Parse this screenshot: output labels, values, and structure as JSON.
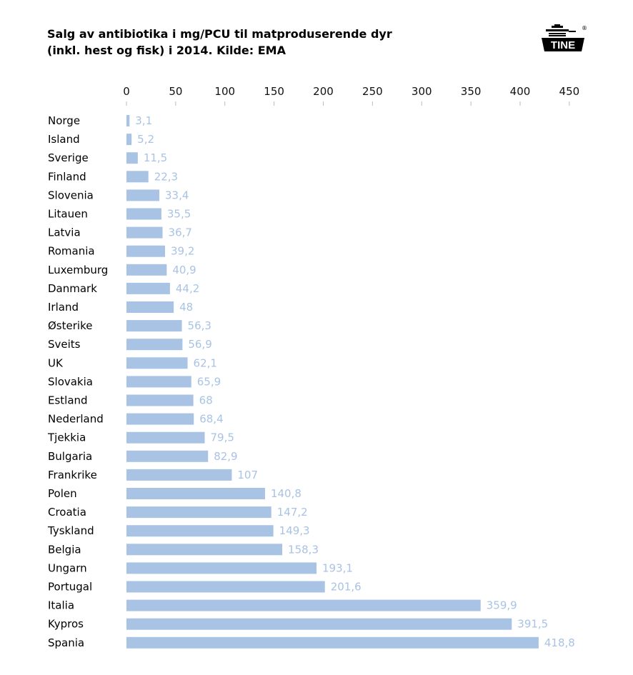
{
  "chart_data": {
    "type": "bar",
    "orientation": "horizontal",
    "title": "Salg av antibiotika i mg/PCU til matproduserende dyr\n(inkl. hest og fisk) i 2014. Kilde: EMA",
    "xlabel": "",
    "ylabel": "",
    "xlim": [
      0,
      450
    ],
    "ticks": [
      0,
      50,
      100,
      150,
      200,
      250,
      300,
      350,
      400,
      450
    ],
    "tick_labels": [
      "0",
      "50",
      "100",
      "150",
      "200",
      "250",
      "300",
      "350",
      "400",
      "450"
    ],
    "grid": false,
    "bar_color": "#a9c3e4",
    "categories": [
      "Norge",
      "Island",
      "Sverige",
      "Finland",
      "Slovenia",
      "Litauen",
      "Latvia",
      "Romania",
      "Luxemburg",
      "Danmark",
      "Irland",
      "Østerike",
      "Sveits",
      "UK",
      "Slovakia",
      "Estland",
      "Nederland",
      "Tjekkia",
      "Bulgaria",
      "Frankrike",
      "Polen",
      "Croatia",
      "Tyskland",
      "Belgia",
      "Ungarn",
      "Portugal",
      "Italia",
      "Kypros",
      "Spania"
    ],
    "values": [
      3.1,
      5.2,
      11.5,
      22.3,
      33.4,
      35.5,
      36.7,
      39.2,
      40.9,
      44.2,
      48,
      56.3,
      56.9,
      62.1,
      65.9,
      68,
      68.4,
      79.5,
      82.9,
      107,
      140.8,
      147.2,
      149.3,
      158.3,
      193.1,
      201.6,
      359.9,
      391.5,
      418.8
    ],
    "value_labels": [
      "3,1",
      "5,2",
      "11,5",
      "22,3",
      "33,4",
      "35,5",
      "36,7",
      "39,2",
      "40,9",
      "44,2",
      "48",
      "56,3",
      "56,9",
      "62,1",
      "65,9",
      "68",
      "68,4",
      "79,5",
      "82,9",
      "107",
      "140,8",
      "147,2",
      "149,3",
      "158,3",
      "193,1",
      "201,6",
      "359,9",
      "391,5",
      "418,8"
    ]
  },
  "logo": {
    "text": "TINE",
    "registered": "®"
  }
}
